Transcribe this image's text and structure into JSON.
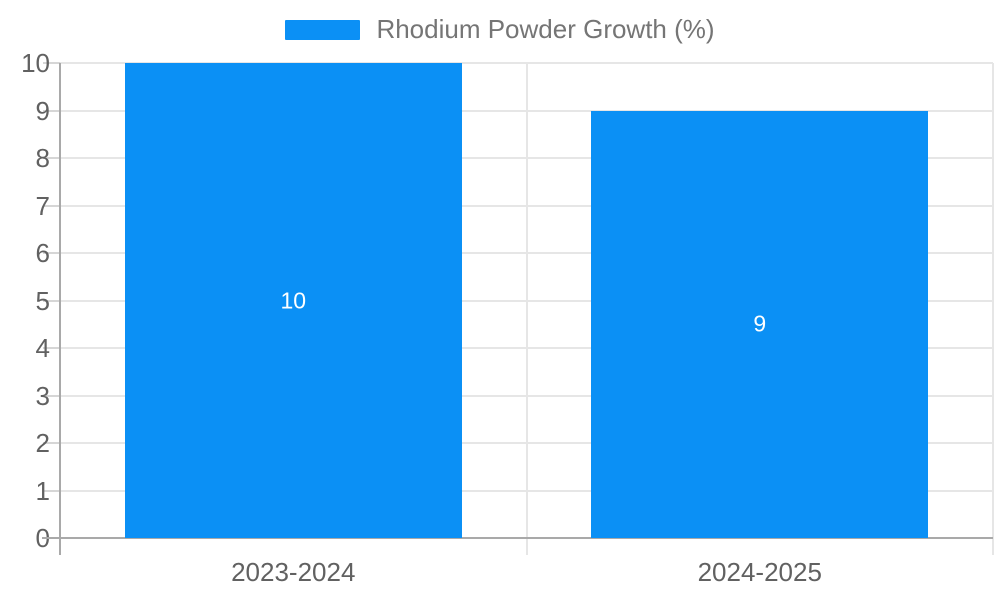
{
  "legend": {
    "label": "Rhodium Powder Growth (%)",
    "swatch_color": "#0b90f5"
  },
  "chart_data": {
    "type": "bar",
    "title": "",
    "categories": [
      "2023-2024",
      "2024-2025"
    ],
    "series": [
      {
        "name": "Rhodium Powder Growth (%)",
        "values": [
          10,
          9
        ]
      }
    ],
    "value_labels": [
      "10",
      "9"
    ],
    "ylabel": "",
    "xlabel": "",
    "ylim": [
      0,
      10
    ],
    "yticks": [
      0,
      1,
      2,
      3,
      4,
      5,
      6,
      7,
      8,
      9,
      10
    ],
    "grid": true,
    "legend_position": "top-center",
    "value_label_position": "inside-middle",
    "colors": {
      "bar": "#0b90f5",
      "value_label": "#ffffff",
      "axis_label": "#616161",
      "legend_text": "#757575",
      "axis_line": "#a9a9a9",
      "gridline": "#e6e6e6",
      "tick": "#d6d6d6",
      "background": "#ffffff"
    }
  }
}
